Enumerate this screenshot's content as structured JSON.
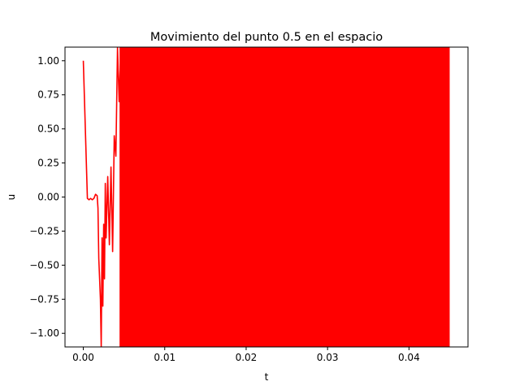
{
  "chart_data": {
    "type": "line",
    "title": "Movimiento del punto 0.5 en el espacio",
    "xlabel": "t",
    "ylabel": "u",
    "xlim": [
      -0.00225,
      0.04725
    ],
    "ylim": [
      -1.1,
      1.1
    ],
    "xticks": [
      0.0,
      0.01,
      0.02,
      0.03,
      0.04
    ],
    "xtick_labels": [
      "0.00",
      "0.01",
      "0.02",
      "0.03",
      "0.04"
    ],
    "yticks": [
      -1.0,
      -0.75,
      -0.5,
      -0.25,
      0.0,
      0.25,
      0.5,
      0.75,
      1.0
    ],
    "ytick_labels": [
      "−1.00",
      "−0.75",
      "−0.50",
      "−0.25",
      "0.00",
      "0.25",
      "0.50",
      "0.75",
      "1.00"
    ],
    "grid": false,
    "series": [
      {
        "color": "#ff0000",
        "x": [
          0.0,
          0.0005,
          0.0007,
          0.0009,
          0.0011,
          0.0013,
          0.0015,
          0.0017,
          0.0018,
          0.0019,
          0.002,
          0.0021,
          0.0022,
          0.0023,
          0.0024,
          0.0025,
          0.0026,
          0.0027,
          0.0028,
          0.003,
          0.0032,
          0.0034,
          0.0036,
          0.0038,
          0.004,
          0.0042,
          0.0044,
          0.0046,
          0.0048
        ],
        "y": [
          1.0,
          -0.01,
          -0.02,
          -0.01,
          -0.02,
          -0.01,
          0.02,
          0.01,
          -0.08,
          -0.45,
          -0.6,
          -0.75,
          -1.1,
          -0.3,
          -0.8,
          -0.2,
          -0.6,
          0.1,
          -0.3,
          0.15,
          -0.35,
          0.22,
          -0.4,
          0.45,
          0.3,
          1.1,
          0.7,
          1.1,
          0.9
        ]
      }
    ],
    "dense_oscillation": {
      "x_start": 0.0045,
      "x_end": 0.045,
      "amplitude_min": -1.1,
      "amplitude_max": 1.1,
      "color": "#ff0000"
    }
  }
}
